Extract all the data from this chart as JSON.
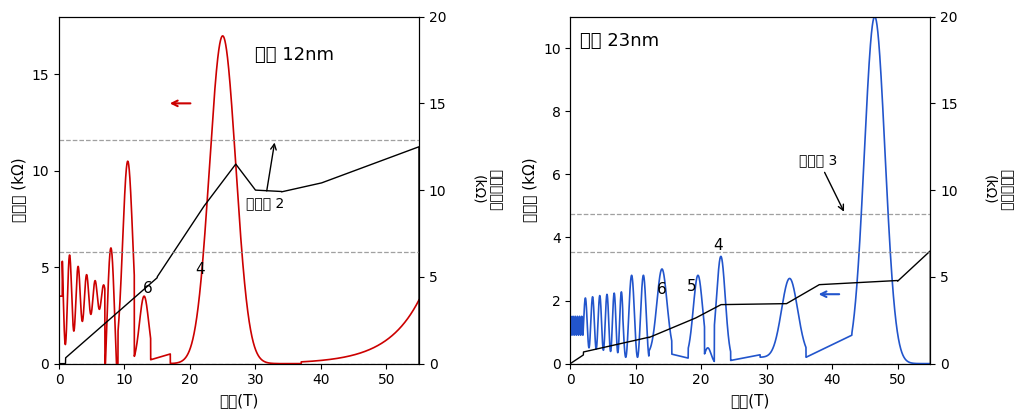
{
  "panel1": {
    "title": "膜厚 12nm",
    "xlabel": "磁場(T)",
    "ylabel_left": "縦抵抗 (kΩ)",
    "ylabel_right": "ホール抵抗\n(kΩ)",
    "xlim": [
      0,
      55
    ],
    "ylim_left": [
      0,
      18
    ],
    "ylim_right": [
      0,
      20
    ],
    "yticks_left": [
      0,
      5,
      10,
      15
    ],
    "yticks_right": [
      0,
      5,
      10,
      15,
      20
    ],
    "xticks": [
      0,
      10,
      20,
      30,
      40,
      50
    ],
    "hall_color": "#000000",
    "rxx_color": "#cc0000",
    "dashed_y_right_1": 6.45,
    "dashed_y_right_2": 12.9
  },
  "panel2": {
    "title": "膜厚 23nm",
    "xlabel": "磁場(T)",
    "ylabel_left": "縦抵抗 (kΩ)",
    "ylabel_right": "ホール抵抗\n(kΩ)",
    "xlim": [
      0,
      55
    ],
    "ylim_left": [
      0,
      11
    ],
    "ylim_right": [
      0,
      20
    ],
    "yticks_left": [
      0,
      2,
      4,
      6,
      8,
      10
    ],
    "yticks_right": [
      0,
      5,
      10,
      15,
      20
    ],
    "xticks": [
      0,
      10,
      20,
      30,
      40,
      50
    ],
    "hall_color": "#000000",
    "rxx_color": "#2255cc",
    "dashed_y_right_1": 6.45,
    "dashed_y_right_2": 8.61
  },
  "background_color": "#ffffff",
  "font_size": 11,
  "title_font_size": 13
}
